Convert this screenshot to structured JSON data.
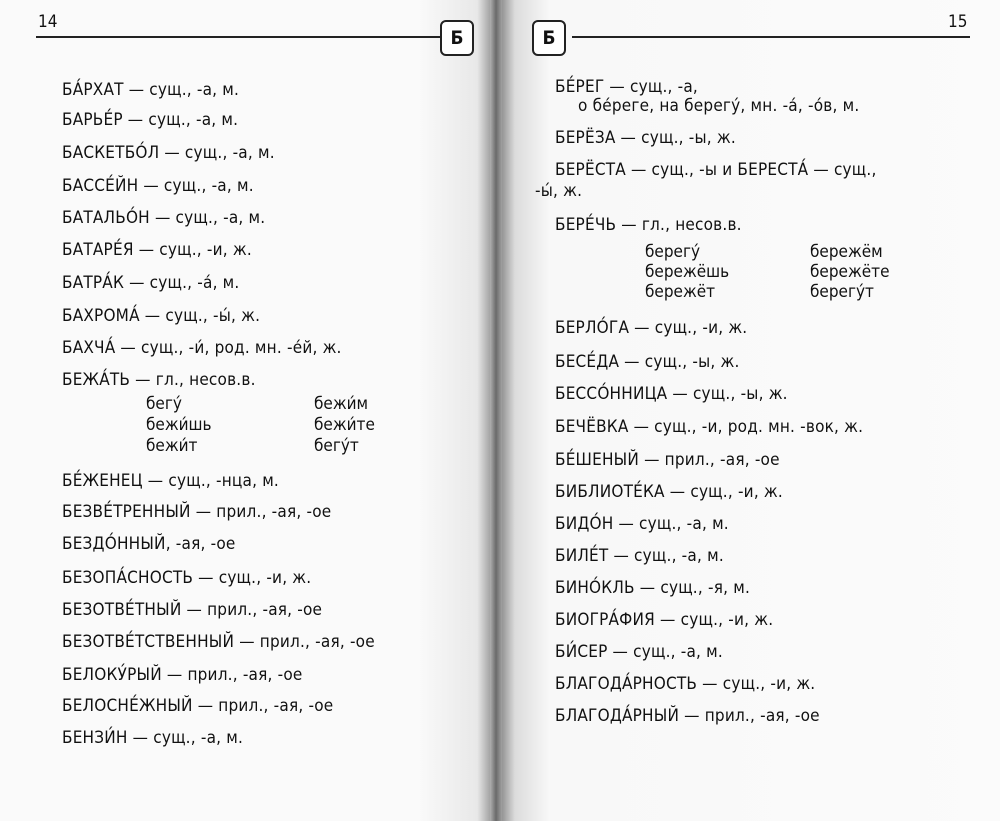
{
  "left_page": {
    "page_number": "14",
    "section_letter": "Б",
    "entries": [
      "БА́РХАТ — сущ., -а, м.",
      "БАРЬЕ́Р — сущ., -а, м.",
      "БАСКЕТБО́Л — сущ., -а, м.",
      "БАССЕ́ЙН — сущ., -а, м.",
      "БАТАЛЬО́Н — сущ., -а, м.",
      "БАТАРЕ́Я — сущ., -и, ж.",
      "БАТРА́К — сущ., -а́, м.",
      "БАХРОМА́ — сущ., -ы́, ж.",
      "БАХЧА́ — сущ., -и́, род. мн. -е́й, ж.",
      "БЕЖА́ТЬ — гл., несов.в.",
      "БЕ́ЖЕНЕЦ — сущ., -нца, м.",
      "БЕЗВЕ́ТРЕННЫЙ — прил., -ая, -ое",
      "БЕЗДО́ННЫЙ, -ая, -ое",
      "БЕЗОПА́СНОСТЬ — сущ., -и, ж.",
      "БЕЗОТВЕ́ТНЫЙ — прил., -ая, -ое",
      "БЕЗОТВЕ́ТСТВЕННЫЙ — прил., -ая, -ое",
      "БЕЛОКУ́РЫЙ — прил., -ая, -ое",
      "БЕЛОСНЕ́ЖНЫЙ — прил., -ая, -ое",
      "БЕНЗИ́Н — сущ., -а, м."
    ],
    "conjugation": [
      "бегу́",
      "бежи́м",
      "бежи́шь",
      "бежи́те",
      "бежи́т",
      "бегу́т"
    ]
  },
  "right_page": {
    "page_number": "15",
    "section_letter": "Б",
    "entries": [
      "БЕ́РЕГ — сущ., -а,",
      "о бе́реге, на берегу́, мн. -а́, -о́в, м.",
      "БЕРЁЗА — сущ., -ы, ж.",
      "БЕРЁСТА — сущ., -ы и БЕРЕСТА́ — сущ.,",
      "-ы́, ж.",
      "БЕРЕ́ЧЬ — гл., несов.в.",
      "БЕРЛО́ГА — сущ., -и, ж.",
      "БЕСЕ́ДА — сущ., -ы, ж.",
      "БЕССО́ННИЦА — сущ., -ы, ж.",
      "БЕЧЁВКА — сущ., -и, род. мн. -вок, ж.",
      "БЕ́ШЕНЫЙ — прил., -ая, -ое",
      "БИБЛИОТЕ́КА — сущ., -и, ж.",
      "БИДО́Н — сущ., -а, м.",
      "БИЛЕ́Т — сущ., -а, м.",
      "БИНО́КЛЬ — сущ., -я, м.",
      "БИОГРА́ФИЯ — сущ., -и, ж.",
      "БИ́СЕР — сущ., -а, м.",
      "БЛАГОДА́РНОСТЬ — сущ., -и, ж.",
      "БЛАГОДА́РНЫЙ — прил., -ая, -ое"
    ],
    "conjugation": [
      "берегу́",
      "бережём",
      "бережёшь",
      "бережёте",
      "бережёт",
      "берегу́т"
    ]
  }
}
